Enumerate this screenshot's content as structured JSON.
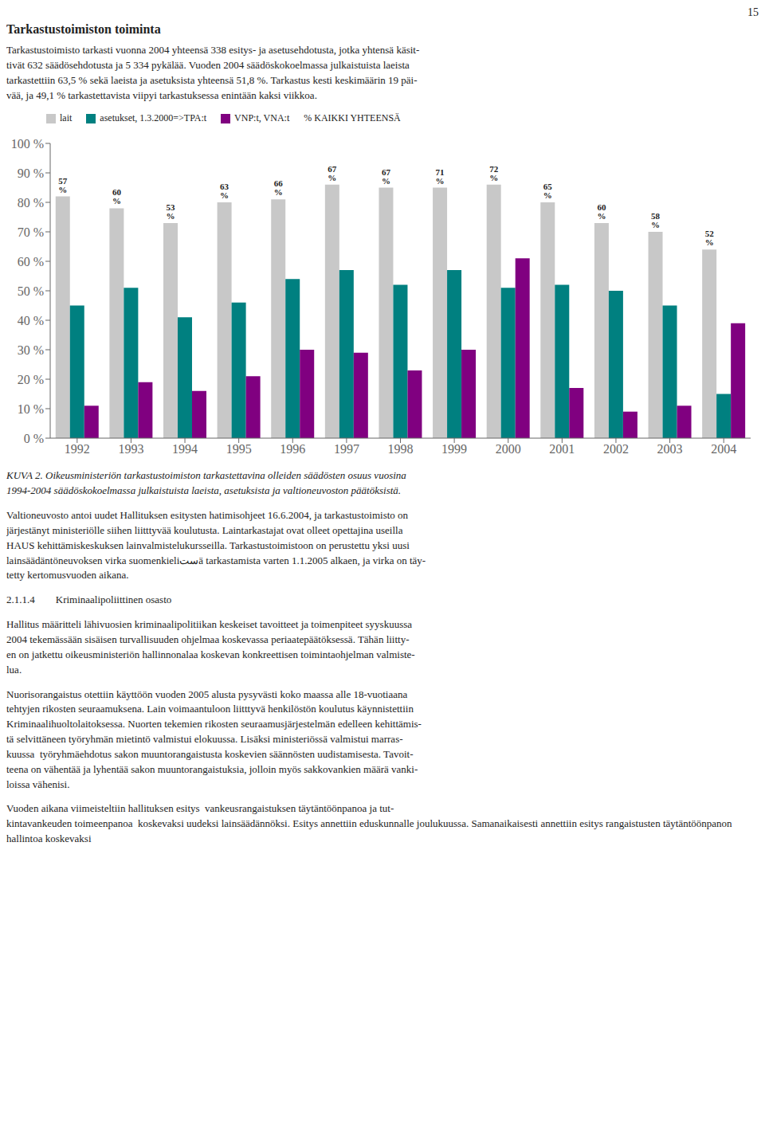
{
  "chart_data": {
    "type": "bar",
    "title": "Tarkastustoimiston toiminta",
    "subtitle": "Tarkastustoimisto tarkasti vuonna 2004 yhteensä 338 esitys- ja asetusehdotusta, jotka yhtensä käsit-\ntivät 632 säädösehdotusta ja 5 334 pykälää. Vuoden 2004 säädöskokoelmassa julkaistuista laeista\ntarkastettiin 63,5 % sekä laeista ja asetuksista yhteensä 51,8 %. Tarkastus kesti keskimäärin 19 päi-\nvää, ja 49,1 % tarkastettavista viipyi tarkastuksessa enintään kaksi viikkoa.",
    "annotations": [
      "15",
      "KUVA 2. Oikeusministeriön tarkastustoimiston tarkastettavina olleiden säädösten osuus vuosina\n1994-2004 säädöskokoelmassa julkaistuista laeista, asetuksista ja valtioneuvoston päätöksistä.",
      "Valtioneuvosto antoi uudet Hallituksen esitysten hatimisohjeet 16.6.2004, ja tarkastustoimisto on\njärjestänyt ministeriölle siihen liitttyvää koulutusta. Laintarkastajat ovat olleet opettajina useilla\nHAUS kehittämiskeskuksen lainvalmistelukursseilla. Tarkastustoimistoon on perustettu yksi uusi\nlainsäädäntöneuvoksen virka suomenkieliستä tarkastamista varten 1.1.2005 alkaen, ja virka on täy-\ntetty kertomusvuoden aikana.",
      "2.1.1.4        Kriminaalipoliittinen osasto",
      "Hallitus määritteli lähivuosien kriminaalipolitiikan keskeiset tavoitteet ja toimenpiteet syyskuussa\n2004 tekemässään sisäisen turvallisuuden ohjelmaa koskevassa periaatepäätöksessä. Tähän liitty-\nen on jatkettu oikeusministeriön hallinnonalaa koskevan konkreettisen toimintaohjelman valmiste-\nlua.",
      "Nuorisorangaistus otettiin käyttöön vuoden 2005 alusta pysyvästi koko maassa alle 18-vuotiaana\ntehtyjen rikosten seuraamuksena. Lain voimaantuloon liitttyvä henkilöstön koulutus käynnistettiin\nKriminaalihuoltolaitoksessa. Nuorten tekemien rikosten seuraamusjärjestelmän edelleen kehittämis-\ntä selvittäneen työryhmän mietintö valmistui elokuussa. Lisäksi ministeriössä valmistui marras-\nkuussa  työryhmäehdotus sakon muuntorangaistusta koskevien säännösten uudistamisesta. Tavoit-\nteena on vähentää ja lyhentää sakon muuntorangaistuksia, jolloin myös sakkovankien määrä vanki-\nloissa vähenisi.",
      "Vuoden aikana viimeisteltiin hallituksen esitys  vankeusrangaistuksen täytäntöönpanoa ja tut-\nkintavankeuden toimeenpanoa  koskevaksi uudeksi lainsäädännöksi. Esitys annettiin eduskunnalle joulukuussa. Samanaikaisesti annettiin esitys rangaistusten täytäntöönpanon hallintoa koskevaksi"
    ],
    "categories": [
      "1992",
      "1993",
      "1994",
      "1995",
      "1996",
      "1997",
      "1998",
      "1999",
      "2000",
      "2001",
      "2002",
      "2003",
      "2004"
    ],
    "series": [
      {
        "name": "lait",
        "type": "bar",
        "color": "#c8c8c8",
        "values": [
          82,
          78,
          73,
          80,
          81,
          86,
          85,
          85,
          86,
          80,
          73,
          70,
          64
        ]
      },
      {
        "name": "asetukset, 1.3.2000=>TPA:t",
        "type": "bar",
        "color": "#008080",
        "values": [
          45,
          51,
          41,
          46,
          54,
          57,
          52,
          57,
          51,
          52,
          50,
          45,
          15
        ]
      },
      {
        "name": "VNP:t, VNA:t",
        "type": "bar",
        "color": "#800080",
        "values": [
          11,
          19,
          16,
          21,
          30,
          29,
          23,
          30,
          61,
          17,
          9,
          11,
          39
        ]
      },
      {
        "name": "% KAIKKI YHTEENSÄ",
        "type": "label",
        "data_labels": true,
        "values": [
          57,
          60,
          53,
          63,
          66,
          67,
          67,
          71,
          72,
          65,
          60,
          58,
          52
        ],
        "value_labels": [
          "57 %",
          "60 %",
          "53 %",
          "63 %",
          "66 %",
          "67 %",
          "67 %",
          "71 %",
          "72 %",
          "65 %",
          "60 %",
          "58 %",
          "52 %"
        ]
      }
    ],
    "ylim": [
      0,
      100
    ],
    "yticks": [
      {
        "value": 0,
        "label": "0 %"
      },
      {
        "value": 10,
        "label": "10 %"
      },
      {
        "value": 20,
        "label": "20 %"
      },
      {
        "value": 30,
        "label": "30 %"
      },
      {
        "value": 40,
        "label": "40 %"
      },
      {
        "value": 50,
        "label": "50 %"
      },
      {
        "value": 60,
        "label": "60 %"
      },
      {
        "value": 70,
        "label": "70 %"
      },
      {
        "value": 80,
        "label": "80 %"
      },
      {
        "value": 90,
        "label": "90 %"
      },
      {
        "value": 100,
        "label": "100 %"
      }
    ],
    "grid": false,
    "legend": "upper left"
  }
}
